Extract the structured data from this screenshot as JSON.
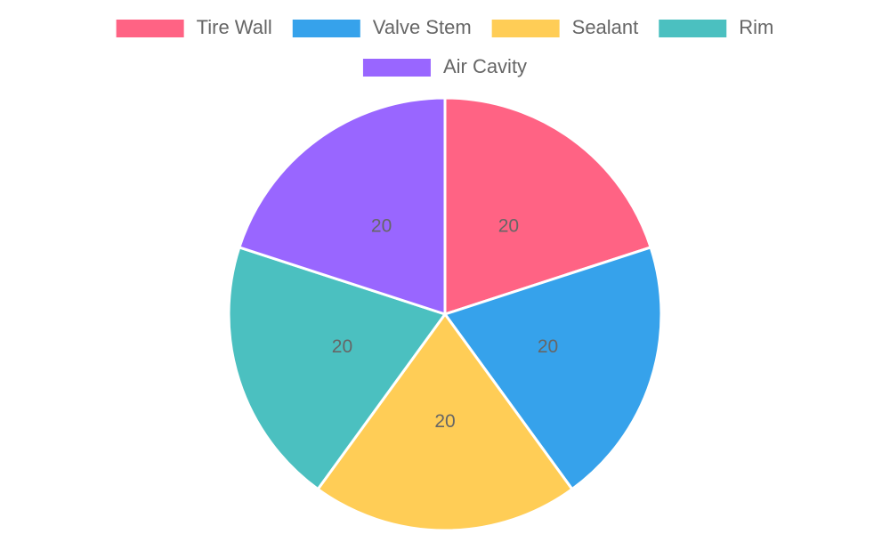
{
  "chart_data": {
    "type": "pie",
    "categories": [
      "Tire Wall",
      "Valve Stem",
      "Sealant",
      "Rim",
      "Air Cavity"
    ],
    "values": [
      20,
      20,
      20,
      20,
      20
    ],
    "colors": [
      "#ff6384",
      "#36a2eb",
      "#ffcd56",
      "#4bc0c0",
      "#9966ff"
    ],
    "legend": "top"
  }
}
